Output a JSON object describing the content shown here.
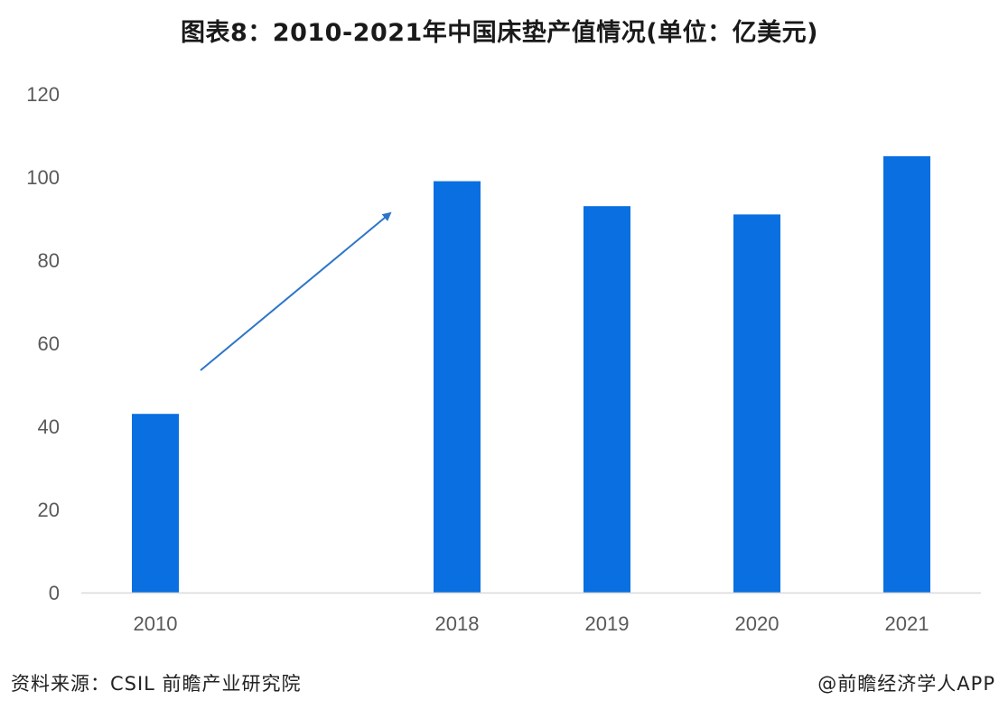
{
  "title": "图表8：2010-2021年中国床垫产值情况(单位：亿美元)",
  "source": "资料来源：CSIL 前瞻产业研究院",
  "credit": "@前瞻经济学人APP",
  "colors": {
    "bar": "#0a6fe0",
    "arrow": "#2e75c8",
    "axis": "#d9d9d9"
  },
  "chart_data": {
    "type": "bar",
    "categories": [
      "2010",
      "2018",
      "2019",
      "2020",
      "2021"
    ],
    "values": [
      43,
      99,
      93,
      91,
      105
    ],
    "ylim": [
      0,
      120
    ],
    "yticks": [
      "0",
      "20",
      "40",
      "60",
      "80",
      "100",
      "120"
    ],
    "xlabel": "",
    "ylabel": "",
    "grid": false,
    "annotations": [
      "upward trend arrow from 2010 toward 2018"
    ]
  }
}
